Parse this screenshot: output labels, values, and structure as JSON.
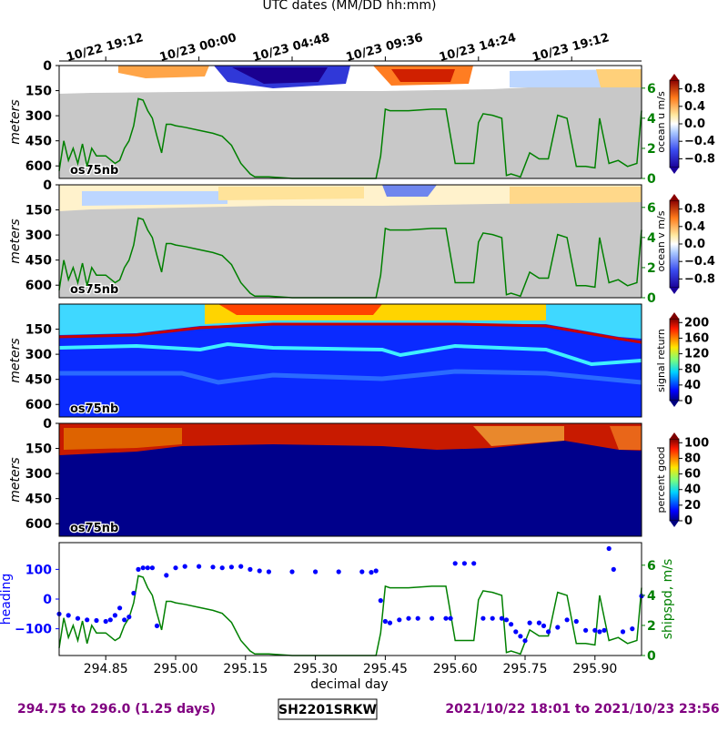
{
  "header": {
    "title": "UTC dates (MM/DD hh:mm)",
    "utc_ticks": [
      "10/22 19:12",
      "10/23 00:00",
      "10/23 04:48",
      "10/23 09:36",
      "10/23 14:24",
      "10/23 19:12"
    ]
  },
  "footer": {
    "range_left": "294.75 to 296.0 (1.25 days)",
    "cruise_id": "SH2201SRKW",
    "range_right": "2021/10/22 18:01 to 2021/10/23 23:56"
  },
  "colors": {
    "ship_speed": "#008000",
    "heading": "#0000ff",
    "no_data": "#c8c8c8",
    "footer_text": "#800080"
  },
  "chart_data": [
    {
      "type": "heatmap",
      "panel": "ocean-u",
      "tag": "os75nb",
      "ylabel": "meters",
      "yticks": [
        "0",
        "150",
        "300",
        "450",
        "600"
      ],
      "colorbar_label": "ocean u m/s",
      "colorbar_ticks": [
        "0.8",
        "0.4",
        "0.0",
        "−0.4",
        "−0.8"
      ],
      "clim": [
        -1,
        1
      ],
      "right_axis_ticks": [
        "6",
        "4",
        "2",
        "0"
      ],
      "right_axis_range": [
        0,
        7.5
      ]
    },
    {
      "type": "heatmap",
      "panel": "ocean-v",
      "tag": "os75nb",
      "ylabel": "meters",
      "yticks": [
        "0",
        "150",
        "300",
        "450",
        "600"
      ],
      "colorbar_label": "ocean v m/s",
      "colorbar_ticks": [
        "0.8",
        "0.4",
        "0.0",
        "−0.4",
        "−0.8"
      ],
      "clim": [
        -1,
        1
      ],
      "right_axis_ticks": [
        "6",
        "4",
        "2",
        "0"
      ],
      "right_axis_range": [
        0,
        7.5
      ]
    },
    {
      "type": "heatmap",
      "panel": "signal-return",
      "tag": "os75nb",
      "ylabel": "meters",
      "yticks": [
        "150",
        "300",
        "450",
        "600"
      ],
      "colorbar_label": "signal return",
      "colorbar_ticks": [
        "200",
        "160",
        "120",
        "80",
        "40",
        "0"
      ],
      "clim": [
        0,
        210
      ]
    },
    {
      "type": "heatmap",
      "panel": "percent-good",
      "tag": "os75nb",
      "ylabel": "meters",
      "yticks": [
        "0",
        "150",
        "300",
        "450",
        "600"
      ],
      "colorbar_label": "percent good",
      "colorbar_ticks": [
        "100",
        "80",
        "60",
        "40",
        "20",
        "0"
      ],
      "clim": [
        0,
        105
      ]
    },
    {
      "type": "line",
      "panel": "heading-speed",
      "xlabel": "decimal day",
      "xticks": [
        "294.85",
        "295.00",
        "295.15",
        "295.30",
        "295.45",
        "295.60",
        "295.75",
        "295.90"
      ],
      "xlim": [
        294.75,
        296.0
      ],
      "ylabel_left": "heading",
      "yticks_left": [
        "100",
        "0",
        "−100"
      ],
      "ylim_left": [
        -190,
        190
      ],
      "ylabel_right": "shipspd, m/s",
      "yticks_right": [
        "6",
        "4",
        "2",
        "0"
      ],
      "ylim_right": [
        0,
        7.5
      ],
      "series": [
        {
          "name": "shipspd, m/s",
          "axis": "right",
          "x": [
            294.75,
            294.76,
            294.77,
            294.78,
            294.79,
            294.8,
            294.81,
            294.82,
            294.83,
            294.85,
            294.87,
            294.88,
            294.89,
            294.9,
            294.91,
            294.92,
            294.93,
            294.94,
            294.95,
            294.96,
            294.97,
            294.98,
            294.99,
            295.0,
            295.02,
            295.05,
            295.08,
            295.1,
            295.12,
            295.14,
            295.16,
            295.17,
            295.2,
            295.25,
            295.3,
            295.35,
            295.4,
            295.43,
            295.44,
            295.45,
            295.46,
            295.48,
            295.5,
            295.55,
            295.58,
            295.6,
            295.62,
            295.64,
            295.65,
            295.66,
            295.68,
            295.7,
            295.71,
            295.72,
            295.74,
            295.76,
            295.78,
            295.8,
            295.82,
            295.84,
            295.86,
            295.88,
            295.9,
            295.91,
            295.93,
            295.95,
            295.97,
            295.99,
            296.0
          ],
          "values": [
            0.5,
            2.5,
            1.2,
            2.0,
            1.0,
            2.3,
            0.8,
            2.0,
            1.5,
            1.5,
            1.0,
            1.2,
            2.0,
            2.5,
            3.5,
            5.3,
            5.2,
            4.5,
            4.0,
            2.8,
            1.7,
            3.6,
            3.6,
            3.5,
            3.4,
            3.2,
            3.0,
            2.8,
            2.2,
            1.0,
            0.3,
            0.1,
            0.1,
            0.0,
            0.0,
            0.0,
            0.0,
            0.0,
            1.5,
            4.6,
            4.5,
            4.5,
            4.5,
            4.6,
            4.6,
            1.0,
            1.0,
            1.0,
            3.7,
            4.3,
            4.2,
            4.0,
            0.2,
            0.3,
            0.1,
            1.7,
            1.3,
            1.3,
            4.2,
            4.0,
            0.8,
            0.8,
            0.7,
            4.0,
            1.0,
            1.2,
            0.8,
            1.0,
            4.5
          ]
        },
        {
          "name": "heading",
          "axis": "left",
          "x": [
            294.75,
            294.77,
            294.79,
            294.81,
            294.83,
            294.85,
            294.86,
            294.87,
            294.88,
            294.89,
            294.9,
            294.91,
            294.92,
            294.93,
            294.94,
            294.95,
            294.96,
            294.98,
            295.0,
            295.02,
            295.05,
            295.08,
            295.1,
            295.12,
            295.14,
            295.16,
            295.18,
            295.2,
            295.25,
            295.3,
            295.35,
            295.4,
            295.42,
            295.43,
            295.44,
            295.45,
            295.46,
            295.48,
            295.5,
            295.52,
            295.55,
            295.58,
            295.59,
            295.6,
            295.62,
            295.64,
            295.66,
            295.68,
            295.7,
            295.71,
            295.72,
            295.73,
            295.74,
            295.75,
            295.76,
            295.78,
            295.79,
            295.8,
            295.82,
            295.84,
            295.86,
            295.88,
            295.9,
            295.91,
            295.92,
            295.93,
            295.94,
            295.96,
            295.98,
            296.0
          ],
          "values": [
            -50,
            -55,
            -65,
            -70,
            -72,
            -75,
            -70,
            -55,
            -30,
            -70,
            -60,
            20,
            100,
            105,
            105,
            105,
            -90,
            80,
            105,
            110,
            110,
            108,
            105,
            108,
            110,
            100,
            95,
            92,
            92,
            92,
            92,
            92,
            90,
            95,
            -5,
            -75,
            -80,
            -70,
            -65,
            -65,
            -65,
            -65,
            -65,
            120,
            120,
            120,
            -65,
            -65,
            -65,
            -70,
            -85,
            -110,
            -125,
            -140,
            -80,
            -80,
            -90,
            -110,
            -95,
            -70,
            -75,
            -105,
            -105,
            -110,
            -105,
            170,
            100,
            -110,
            -100,
            10
          ]
        }
      ]
    }
  ]
}
